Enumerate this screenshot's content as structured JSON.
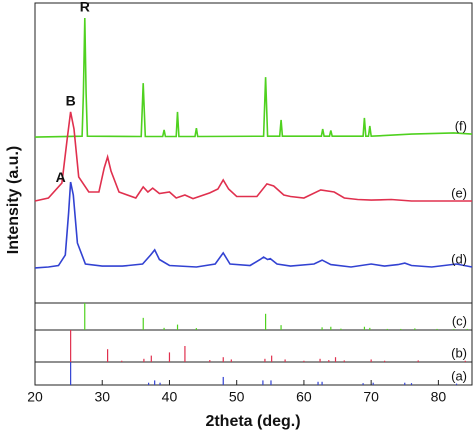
{
  "chart_data": {
    "type": "line",
    "xlabel": "2theta (deg.)",
    "ylabel": "Intensity (a.u.)",
    "xlim": [
      20,
      85
    ],
    "xticks": [
      20,
      30,
      40,
      50,
      60,
      70,
      80
    ],
    "ylim": [
      0,
      100
    ],
    "series": [
      {
        "name": "(f)",
        "peak_label": "R",
        "color": "#4fd11f",
        "x": [
          20,
          27,
          27.2,
          27.4,
          27.6,
          27.8,
          35.8,
          36.1,
          36.4,
          39,
          39.2,
          39.4,
          41,
          41.2,
          41.4,
          43.8,
          44,
          44.2,
          54,
          54.3,
          54.6,
          56.4,
          56.6,
          56.8,
          62.6,
          62.8,
          63,
          63.8,
          64,
          64.2,
          68.8,
          69,
          69.2,
          69.6,
          69.8,
          70,
          76,
          82.3,
          85
        ],
        "values": [
          55.3,
          55.6,
          70,
          95,
          70,
          55.6,
          55.5,
          73.3,
          55.5,
          55.5,
          57.7,
          55.5,
          55.5,
          63.7,
          55.5,
          55.5,
          58.3,
          55.5,
          55.6,
          75.3,
          55.6,
          55.6,
          61,
          55.6,
          55.6,
          58,
          55.6,
          55.6,
          57.5,
          55.6,
          55.6,
          61.7,
          55.6,
          55.6,
          59,
          55.6,
          56.3,
          56.7,
          56.3
        ]
      },
      {
        "name": "(e)",
        "peak_label": "B",
        "color": "#e0304e",
        "x": [
          20,
          22,
          24,
          24.8,
          25.3,
          25.8,
          26.5,
          28,
          29.5,
          30.3,
          30.8,
          31.3,
          32.5,
          35,
          36.1,
          36.8,
          37.5,
          38.5,
          40,
          41,
          42.3,
          43.5,
          46,
          47.2,
          48,
          48.8,
          50,
          53,
          54.5,
          55.5,
          57,
          58,
          60,
          62.5,
          64.5,
          66,
          68,
          70,
          73,
          76,
          80,
          85
        ],
        "values": [
          34,
          35,
          40,
          55,
          63.7,
          58,
          42,
          37,
          37,
          45,
          48.7,
          44,
          37,
          35,
          38.7,
          37,
          38.3,
          36.5,
          37,
          35,
          36,
          34.8,
          36.7,
          38,
          41,
          38,
          35.5,
          35.5,
          39.7,
          39,
          36,
          35.5,
          35,
          37.7,
          37,
          35,
          34.5,
          34.3,
          34.5,
          34,
          34,
          34
        ]
      },
      {
        "name": "(d)",
        "peak_label": "A",
        "color": "#3242d2",
        "x": [
          20,
          22,
          23.5,
          24.5,
          25.0,
          25.3,
          25.7,
          26.3,
          27.5,
          30,
          33,
          36,
          37.2,
          37.8,
          38.5,
          40,
          44,
          46.8,
          48,
          49,
          52,
          53.5,
          54,
          54.6,
          55,
          56,
          58,
          61.5,
          62.7,
          64,
          67,
          70,
          72,
          74,
          75,
          76,
          79,
          82.7,
          85
        ],
        "values": [
          11.7,
          12,
          12.5,
          16,
          30,
          40.3,
          36,
          20,
          13,
          12.3,
          12.3,
          13,
          16,
          17.7,
          14.5,
          12.5,
          12,
          13,
          16.7,
          13,
          12.5,
          14.5,
          15.3,
          14.5,
          14.8,
          13,
          12.3,
          13,
          14.3,
          12.8,
          12,
          13,
          12.3,
          12.8,
          13.3,
          12.5,
          12,
          13,
          12
        ]
      }
    ],
    "reference_patterns": [
      {
        "name": "(c)",
        "color": "#4fd11f",
        "ylim": [
          0,
          100
        ],
        "x": [
          27.4,
          36.1,
          39.2,
          41.2,
          44,
          54.3,
          56.6,
          62.7,
          64,
          65.5,
          69,
          69.8,
          72.4,
          74.4,
          76.5,
          79.8,
          82.3,
          84.3
        ],
        "values": [
          100,
          45,
          8,
          20,
          7,
          60,
          18,
          10,
          12,
          5,
          12,
          8,
          4,
          4,
          6,
          4,
          4,
          4
        ]
      },
      {
        "name": "(b)",
        "color": "#e0304e",
        "ylim": [
          0,
          100
        ],
        "x": [
          25.3,
          30.8,
          32.9,
          36.2,
          37.3,
          40,
          42.3,
          46,
          48,
          49.2,
          54.2,
          55.2,
          57.2,
          60,
          62.4,
          63.7,
          64.7,
          66,
          70,
          72,
          77,
          84
        ],
        "values": [
          100,
          40,
          4,
          10,
          20,
          30,
          50,
          6,
          15,
          8,
          10,
          20,
          8,
          4,
          10,
          6,
          15,
          5,
          8,
          4,
          5,
          4
        ]
      },
      {
        "name": "(a)",
        "color": "#3242d2",
        "ylim": [
          0,
          100
        ],
        "x": [
          25.3,
          36.9,
          37.8,
          38.6,
          48,
          53.9,
          55.1,
          62.1,
          62.7,
          68.8,
          70.3,
          75,
          76,
          82.7
        ],
        "values": [
          100,
          10,
          20,
          10,
          35,
          20,
          20,
          14,
          14,
          8,
          10,
          10,
          8,
          6
        ]
      }
    ]
  }
}
